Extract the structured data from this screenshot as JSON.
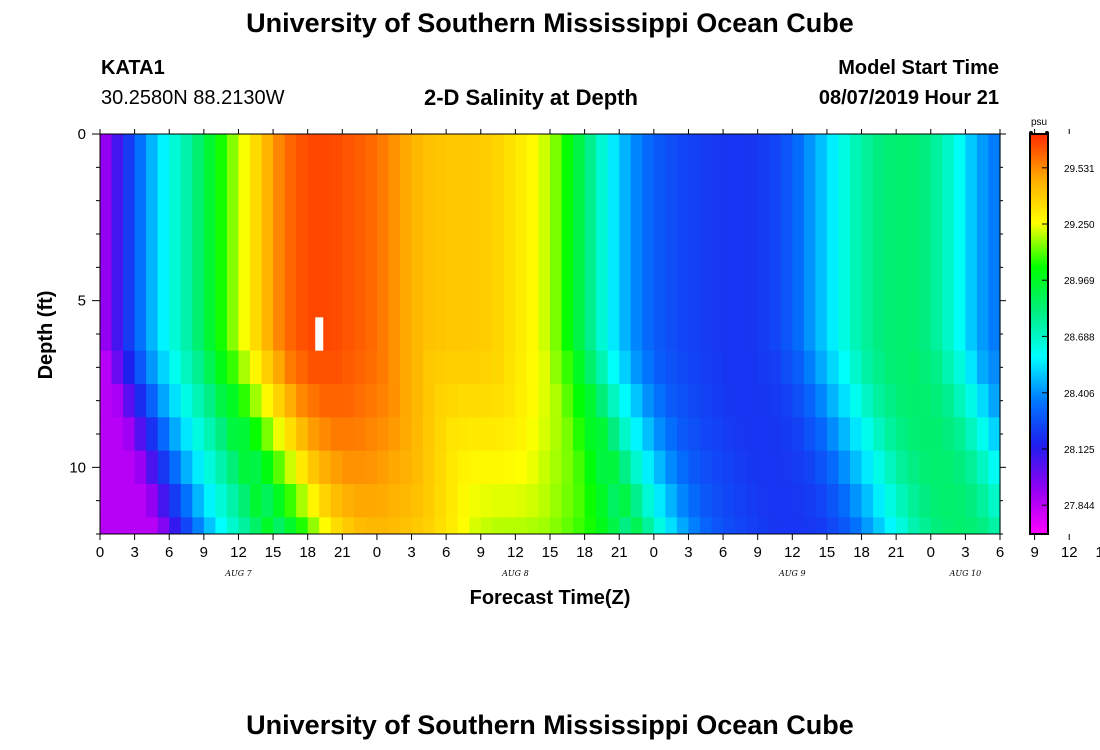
{
  "header": {
    "title": "University of Southern Mississippi Ocean Cube",
    "station": "KATA1",
    "coords": "30.2580N 88.2130W",
    "subtitle": "2-D Salinity at Depth",
    "model_label": "Model Start Time",
    "model_time": "08/07/2019 Hour 21"
  },
  "footer": {
    "title": "University of Southern Mississippi Ocean Cube"
  },
  "colors": {
    "colormap": [
      "#ff00ff",
      "#9400f2",
      "#1f1fee",
      "#0078ff",
      "#00ffff",
      "#00ee80",
      "#00ff00",
      "#ffff00",
      "#ffaa00",
      "#ff2a00"
    ],
    "marker": "#ffffff"
  },
  "chart_data": {
    "type": "heatmap",
    "xlabel": "Forecast Time(Z)",
    "ylabel": "Depth (ft)",
    "x_ticks": [
      "0",
      "3",
      "6",
      "9",
      "12",
      "15",
      "18",
      "21",
      "0",
      "3",
      "6",
      "9",
      "12",
      "15",
      "18",
      "21",
      "0",
      "3",
      "6",
      "9",
      "12",
      "15",
      "18",
      "21",
      "0",
      "3",
      "6",
      "9",
      "12",
      "15",
      "18",
      "21",
      "0",
      "3",
      "6"
    ],
    "x_range_hours": [
      0,
      78
    ],
    "y_ticks": [
      "0",
      "5",
      "10"
    ],
    "ylim_ft": [
      0,
      12
    ],
    "day_labels": [
      {
        "label": "AUG 7",
        "hour": 12
      },
      {
        "label": "AUG 8",
        "hour": 36
      },
      {
        "label": "AUG 9",
        "hour": 60
      },
      {
        "label": "AUG 10",
        "hour": 75
      }
    ],
    "colorbar": {
      "unit": "psu",
      "range": [
        27.7,
        29.7
      ],
      "labels": [
        "29.531",
        "29.250",
        "28.969",
        "28.688",
        "28.406",
        "28.125",
        "27.844"
      ]
    },
    "depth_levels_ft": [
      0,
      6.5,
      7.5,
      8.5,
      9.5,
      10.5,
      11.5
    ],
    "surface_profile": {
      "hours": [
        0,
        2,
        4,
        6,
        8,
        10,
        12,
        14,
        15,
        16,
        18,
        20,
        22,
        24,
        26,
        28,
        30,
        32,
        34,
        36,
        38,
        40,
        42,
        44,
        46,
        48,
        50,
        52,
        54,
        56,
        58,
        60,
        62,
        64,
        66,
        68,
        70,
        72,
        74,
        76,
        78
      ],
      "salinity": [
        27.85,
        28.15,
        28.42,
        28.62,
        28.78,
        29.0,
        29.2,
        29.4,
        29.5,
        29.58,
        29.65,
        29.65,
        29.62,
        29.58,
        29.5,
        29.42,
        29.4,
        29.4,
        29.38,
        29.32,
        29.25,
        29.1,
        28.85,
        28.6,
        28.42,
        28.3,
        28.25,
        28.22,
        28.2,
        28.2,
        28.22,
        28.3,
        28.45,
        28.6,
        28.75,
        28.83,
        28.85,
        28.8,
        28.65,
        28.45,
        28.35
      ]
    },
    "marker": {
      "hour": 19,
      "depth_from_ft": 5.5,
      "depth_to_ft": 6.5
    }
  }
}
